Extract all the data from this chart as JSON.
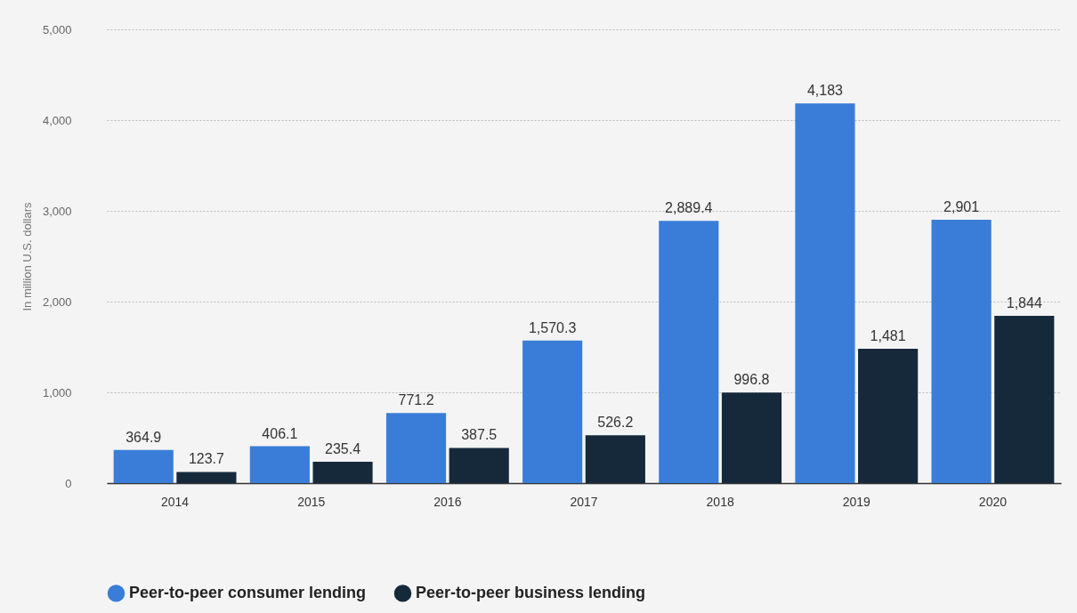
{
  "chart_data": {
    "type": "bar",
    "ylabel": "In million U.S. dollars",
    "categories": [
      "2014",
      "2015",
      "2016",
      "2017",
      "2018",
      "2019",
      "2020"
    ],
    "series": [
      {
        "name": "Peer-to-peer consumer lending",
        "color": "#3a7dd8",
        "values": [
          364.9,
          406.1,
          771.2,
          1570.3,
          2889.4,
          4183,
          2901
        ],
        "value_labels": [
          "364.9",
          "406.1",
          "771.2",
          "1,570.3",
          "2,889.4",
          "4,183",
          "2,901"
        ]
      },
      {
        "name": "Peer-to-peer business lending",
        "color": "#15293b",
        "values": [
          123.7,
          235.4,
          387.5,
          526.2,
          996.8,
          1481,
          1844
        ],
        "value_labels": [
          "123.7",
          "235.4",
          "387.5",
          "526.2",
          "996.8",
          "1,481",
          "1,844"
        ]
      }
    ],
    "ylim": [
      0,
      5000
    ],
    "yticks": [
      {
        "value": 0,
        "label": "0"
      },
      {
        "value": 1000,
        "label": "1,000"
      },
      {
        "value": 2000,
        "label": "2,000"
      },
      {
        "value": 3000,
        "label": "3,000"
      },
      {
        "value": 4000,
        "label": "4,000"
      },
      {
        "value": 5000,
        "label": "5,000"
      }
    ],
    "grid": "y",
    "legend": "bottom"
  }
}
